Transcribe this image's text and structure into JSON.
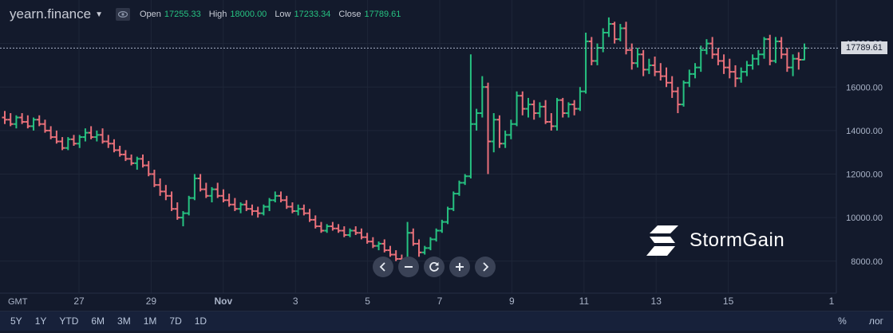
{
  "legend": {
    "symbol": "yearn.finance",
    "open_label": "Open",
    "open": "17255.33",
    "high_label": "High",
    "high": "18000.00",
    "low_label": "Low",
    "low": "17233.34",
    "close_label": "Close",
    "close": "17789.61"
  },
  "last_price_label": "17789.61",
  "timezone": "GMT",
  "ranges": [
    "5Y",
    "1Y",
    "YTD",
    "6M",
    "3M",
    "1M",
    "7D",
    "1D"
  ],
  "scale_options": {
    "percent": "%",
    "log": "лог"
  },
  "nav_icons": [
    "chevron-left-icon",
    "minus-icon",
    "reset-icon",
    "plus-icon",
    "chevron-right-icon"
  ],
  "brand": {
    "name": "StormGain"
  },
  "colors": {
    "up": "#26c281",
    "down": "#e9707a",
    "background": "#131a2c",
    "grid": "#1e2638",
    "axis_text": "#aab4c8"
  },
  "chart_data": {
    "type": "ohlc",
    "title": "",
    "xlabel": "",
    "ylabel": "",
    "ylim": [
      6600,
      20000
    ],
    "y_ticks": [
      8000,
      10000,
      12000,
      14000,
      16000,
      18000
    ],
    "y_tick_labels": [
      "8000.00",
      "10000.00",
      "12000.00",
      "14000.00",
      "16000.00",
      "18000.00"
    ],
    "x_tick_labels": [
      "27",
      "29",
      "Nov",
      "3",
      "5",
      "7",
      "9",
      "11",
      "13",
      "15",
      "1"
    ],
    "grid": true,
    "last_price": 17789.61,
    "candles": [
      [
        14600,
        14900,
        14300,
        14500
      ],
      [
        14500,
        14800,
        14200,
        14300
      ],
      [
        14300,
        14700,
        14100,
        14600
      ],
      [
        14600,
        14800,
        14300,
        14400
      ],
      [
        14400,
        14700,
        14100,
        14200
      ],
      [
        14200,
        14600,
        14000,
        14500
      ],
      [
        14500,
        14700,
        14200,
        14300
      ],
      [
        14300,
        14500,
        13900,
        14000
      ],
      [
        14000,
        14200,
        13600,
        13700
      ],
      [
        13700,
        14000,
        13400,
        13500
      ],
      [
        13500,
        13700,
        13100,
        13200
      ],
      [
        13200,
        13700,
        13100,
        13600
      ],
      [
        13600,
        13800,
        13300,
        13400
      ],
      [
        13400,
        13800,
        13200,
        13700
      ],
      [
        13700,
        14100,
        13500,
        13900
      ],
      [
        13900,
        14200,
        13600,
        13700
      ],
      [
        13700,
        14000,
        13500,
        13800
      ],
      [
        13800,
        14100,
        13400,
        13500
      ],
      [
        13500,
        13800,
        13200,
        13400
      ],
      [
        13400,
        13600,
        13000,
        13100
      ],
      [
        13100,
        13300,
        12800,
        12900
      ],
      [
        12900,
        13100,
        12600,
        12700
      ],
      [
        12700,
        12900,
        12400,
        12500
      ],
      [
        12500,
        12800,
        12200,
        12700
      ],
      [
        12700,
        12900,
        12300,
        12400
      ],
      [
        12400,
        12600,
        11900,
        12000
      ],
      [
        12000,
        12200,
        11400,
        11500
      ],
      [
        11500,
        11800,
        11000,
        11200
      ],
      [
        11200,
        11500,
        10800,
        11000
      ],
      [
        11000,
        11200,
        10300,
        10400
      ],
      [
        10400,
        10700,
        9900,
        10000
      ],
      [
        10000,
        10300,
        9600,
        10200
      ],
      [
        10200,
        11000,
        10100,
        10900
      ],
      [
        10900,
        12000,
        10800,
        11800
      ],
      [
        11800,
        12000,
        11200,
        11300
      ],
      [
        11300,
        11600,
        10900,
        11000
      ],
      [
        11000,
        11400,
        10700,
        11300
      ],
      [
        11300,
        11600,
        10900,
        11000
      ],
      [
        11000,
        11300,
        10700,
        10800
      ],
      [
        10800,
        11100,
        10500,
        10600
      ],
      [
        10600,
        10900,
        10300,
        10400
      ],
      [
        10400,
        10700,
        10200,
        10600
      ],
      [
        10600,
        10800,
        10300,
        10400
      ],
      [
        10400,
        10600,
        10100,
        10300
      ],
      [
        10300,
        10500,
        10000,
        10200
      ],
      [
        10200,
        10600,
        10100,
        10500
      ],
      [
        10500,
        10900,
        10300,
        10800
      ],
      [
        10800,
        11200,
        10700,
        11000
      ],
      [
        11000,
        11200,
        10700,
        10800
      ],
      [
        10800,
        11000,
        10400,
        10500
      ],
      [
        10500,
        10700,
        10200,
        10300
      ],
      [
        10300,
        10600,
        10100,
        10400
      ],
      [
        10400,
        10600,
        10100,
        10200
      ],
      [
        10200,
        10400,
        9800,
        9900
      ],
      [
        9900,
        10100,
        9500,
        9600
      ],
      [
        9600,
        9800,
        9300,
        9400
      ],
      [
        9400,
        9700,
        9300,
        9600
      ],
      [
        9600,
        9800,
        9400,
        9500
      ],
      [
        9500,
        9700,
        9300,
        9400
      ],
      [
        9400,
        9600,
        9100,
        9200
      ],
      [
        9200,
        9500,
        9100,
        9400
      ],
      [
        9400,
        9600,
        9200,
        9300
      ],
      [
        9300,
        9500,
        9000,
        9100
      ],
      [
        9100,
        9300,
        8800,
        8900
      ],
      [
        8900,
        9100,
        8600,
        8700
      ],
      [
        8700,
        8900,
        8500,
        8800
      ],
      [
        8800,
        9000,
        8400,
        8500
      ],
      [
        8500,
        8700,
        8200,
        8300
      ],
      [
        8300,
        8500,
        8000,
        8100
      ],
      [
        8100,
        8300,
        7900,
        8000
      ],
      [
        8000,
        9800,
        7600,
        9300
      ],
      [
        9300,
        9500,
        8700,
        8800
      ],
      [
        8800,
        9000,
        8200,
        8400
      ],
      [
        8400,
        8700,
        8300,
        8600
      ],
      [
        8600,
        9100,
        8500,
        9000
      ],
      [
        9000,
        9500,
        8900,
        9400
      ],
      [
        9400,
        9900,
        9300,
        9800
      ],
      [
        9800,
        10500,
        9700,
        10400
      ],
      [
        10400,
        11200,
        10300,
        11100
      ],
      [
        11100,
        11700,
        11000,
        11600
      ],
      [
        11600,
        12000,
        11500,
        11900
      ],
      [
        11900,
        17500,
        11800,
        14300
      ],
      [
        14300,
        15000,
        14000,
        14800
      ],
      [
        14800,
        16500,
        14600,
        16000
      ],
      [
        16000,
        16200,
        12000,
        13500
      ],
      [
        13500,
        14800,
        13000,
        14500
      ],
      [
        14500,
        14700,
        13200,
        13400
      ],
      [
        13400,
        14000,
        13200,
        13800
      ],
      [
        13800,
        14500,
        13600,
        14300
      ],
      [
        14300,
        15800,
        14200,
        15600
      ],
      [
        15600,
        15800,
        14700,
        15000
      ],
      [
        15000,
        15500,
        14600,
        15200
      ],
      [
        15200,
        15400,
        14500,
        14800
      ],
      [
        14800,
        15300,
        14600,
        15100
      ],
      [
        15100,
        15400,
        14300,
        14400
      ],
      [
        14400,
        14800,
        14000,
        14200
      ],
      [
        14200,
        15500,
        14000,
        15400
      ],
      [
        15400,
        15500,
        14600,
        14800
      ],
      [
        14800,
        15300,
        14600,
        15200
      ],
      [
        15200,
        15400,
        14700,
        15000
      ],
      [
        15000,
        16000,
        14900,
        15800
      ],
      [
        15800,
        18500,
        15700,
        18100
      ],
      [
        18100,
        18300,
        17000,
        17200
      ],
      [
        17200,
        18000,
        17000,
        17800
      ],
      [
        17800,
        18700,
        17600,
        18500
      ],
      [
        18500,
        19200,
        18300,
        18900
      ],
      [
        18900,
        19000,
        18000,
        18200
      ],
      [
        18200,
        18900,
        18100,
        18700
      ],
      [
        18700,
        19000,
        17500,
        17700
      ],
      [
        17700,
        18000,
        16800,
        17100
      ],
      [
        17100,
        17800,
        16900,
        17500
      ],
      [
        17500,
        17700,
        16500,
        16800
      ],
      [
        16800,
        17300,
        16600,
        17000
      ],
      [
        17000,
        17400,
        16500,
        16700
      ],
      [
        16700,
        17100,
        16300,
        16500
      ],
      [
        16500,
        16900,
        16000,
        16200
      ],
      [
        16200,
        16500,
        15500,
        15800
      ],
      [
        15800,
        16000,
        14800,
        15200
      ],
      [
        15200,
        16300,
        15100,
        16200
      ],
      [
        16200,
        16800,
        16000,
        16600
      ],
      [
        16600,
        17100,
        16400,
        16900
      ],
      [
        16900,
        17900,
        16700,
        17700
      ],
      [
        17700,
        18200,
        17500,
        18000
      ],
      [
        18000,
        18300,
        17300,
        17500
      ],
      [
        17500,
        17800,
        17000,
        17200
      ],
      [
        17200,
        17500,
        16600,
        16900
      ],
      [
        16900,
        17300,
        16400,
        16700
      ],
      [
        16700,
        17000,
        16000,
        16400
      ],
      [
        16400,
        16900,
        16200,
        16700
      ],
      [
        16700,
        17200,
        16500,
        17000
      ],
      [
        17000,
        17500,
        16800,
        17300
      ],
      [
        17300,
        17700,
        17000,
        17500
      ],
      [
        17500,
        18300,
        17300,
        18200
      ],
      [
        18200,
        18400,
        17000,
        17200
      ],
      [
        17200,
        18300,
        17100,
        18100
      ],
      [
        18100,
        18300,
        17300,
        17500
      ],
      [
        17500,
        17800,
        16700,
        16900
      ],
      [
        16900,
        17500,
        16500,
        17300
      ],
      [
        17300,
        17600,
        16800,
        17255
      ],
      [
        17255.33,
        18000,
        17233.34,
        17789.61
      ]
    ]
  }
}
